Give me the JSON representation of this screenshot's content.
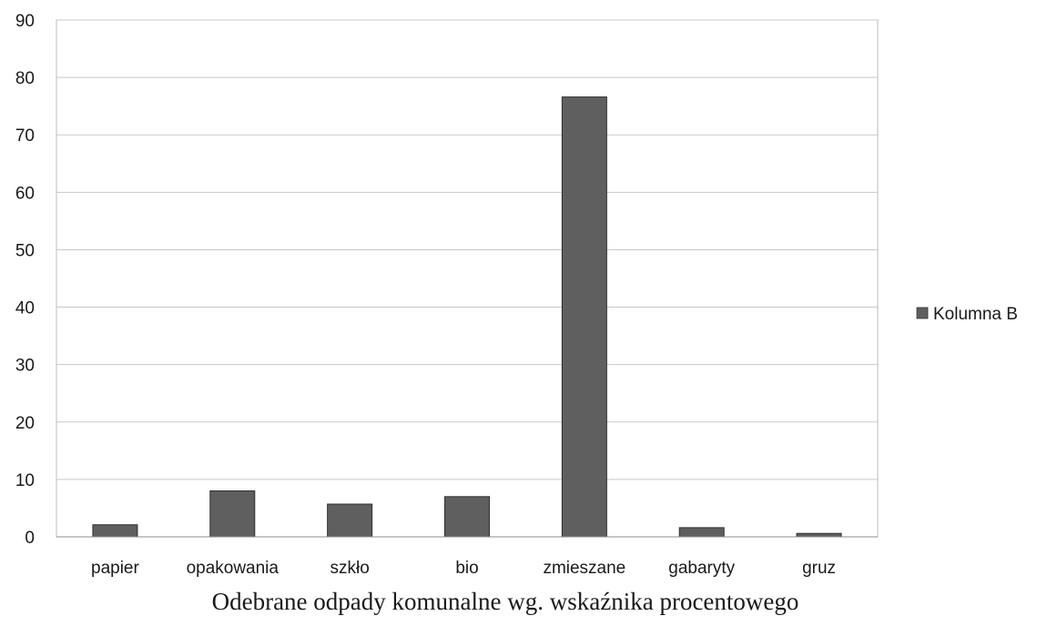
{
  "chart_data": {
    "type": "bar",
    "categories": [
      "papier",
      "opakowania",
      "szkło",
      "bio",
      "zmieszane",
      "gabaryty",
      "gruz"
    ],
    "series": [
      {
        "name": "Kolumna B",
        "values": [
          2.1,
          8.0,
          5.7,
          7.0,
          76.6,
          1.6,
          0.6
        ],
        "color": "#5f5f5f"
      }
    ],
    "ylim": [
      0,
      90
    ],
    "yticks": [
      0,
      10,
      20,
      30,
      40,
      50,
      60,
      70,
      80,
      90
    ],
    "grid": true,
    "legend_placement": "right",
    "caption": "Odebrane odpady komunalne wg. wskaźnika procentowego"
  }
}
